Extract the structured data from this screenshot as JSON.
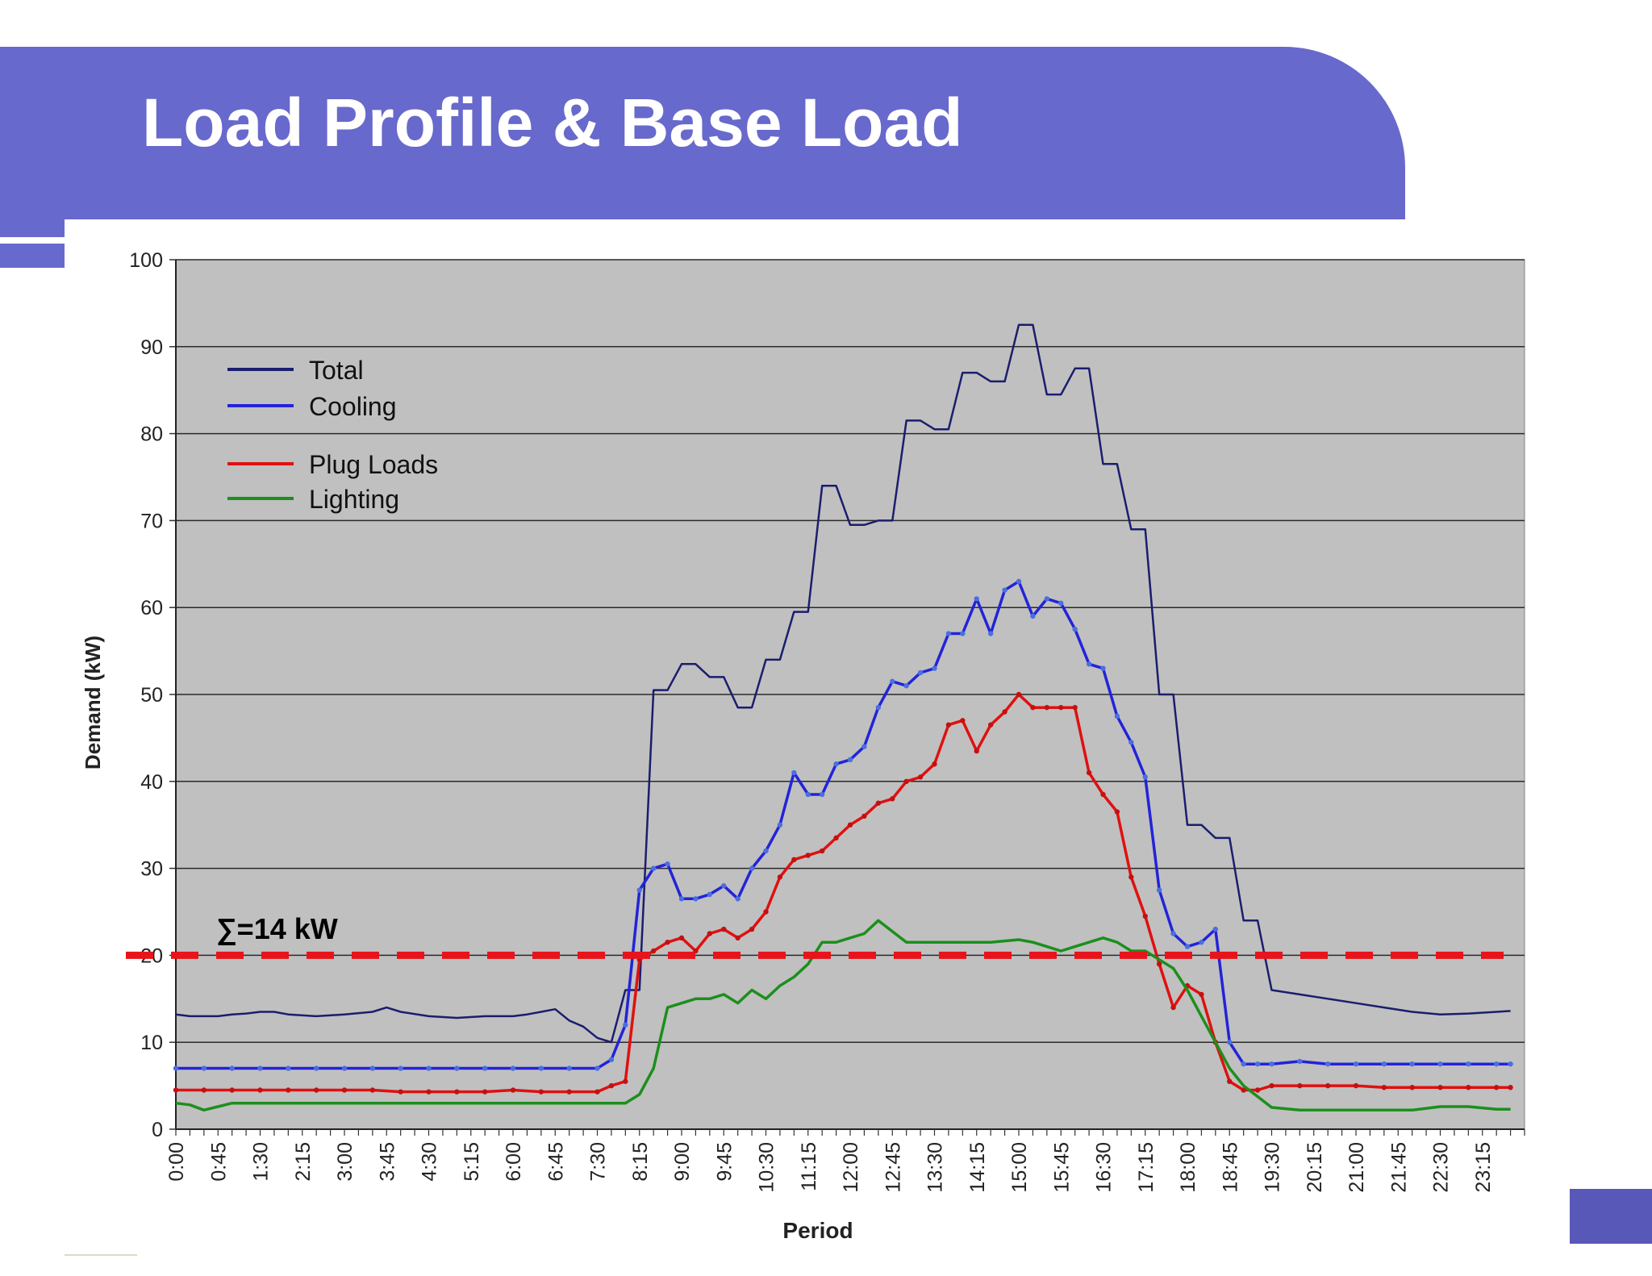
{
  "slide": {
    "title": "Load Profile & Base Load",
    "banner_color": "#6869cc",
    "corner_color": "#5858b8"
  },
  "chart_data": {
    "type": "line",
    "xlabel": "Period",
    "ylabel": "Demand (kW)",
    "ylim": [
      0,
      100
    ],
    "yticks": [
      0,
      10,
      20,
      30,
      40,
      50,
      60,
      70,
      80,
      90,
      100
    ],
    "xticks": [
      "0:00",
      "0:45",
      "1:30",
      "2:15",
      "3:00",
      "3:45",
      "4:30",
      "5:15",
      "6:00",
      "6:45",
      "7:30",
      "8:15",
      "9:00",
      "9:45",
      "10:30",
      "11:15",
      "12:00",
      "12:45",
      "13:30",
      "14:15",
      "15:00",
      "15:45",
      "16:30",
      "17:15",
      "18:00",
      "18:45",
      "19:30",
      "20:15",
      "21:00",
      "21:45",
      "22:30",
      "23:15"
    ],
    "x_unit": "hours",
    "x_range": [
      0,
      24
    ],
    "plot_bg": "#c0c0c0",
    "grid": true,
    "legend_position": "top-left",
    "series": [
      {
        "name": "Total",
        "color": "#1a1e6e",
        "x": [
          0,
          0.25,
          0.5,
          0.75,
          1,
          1.25,
          1.5,
          1.75,
          2,
          2.5,
          3,
          3.5,
          3.75,
          4,
          4.5,
          5,
          5.5,
          6,
          6.25,
          6.5,
          6.75,
          7,
          7.25,
          7.5,
          7.75,
          8,
          8.25,
          8.5,
          8.75,
          9,
          9.25,
          9.5,
          9.75,
          10,
          10.25,
          10.5,
          10.75,
          11,
          11.25,
          11.5,
          11.75,
          12,
          12.25,
          12.5,
          12.75,
          13,
          13.25,
          13.5,
          13.75,
          14,
          14.25,
          14.5,
          14.75,
          15,
          15.25,
          15.5,
          15.75,
          16,
          16.25,
          16.5,
          16.75,
          17,
          17.25,
          17.5,
          17.75,
          18,
          18.25,
          18.5,
          18.75,
          19,
          19.25,
          19.5,
          20,
          20.5,
          21,
          21.5,
          22,
          22.5,
          23,
          23.5,
          23.75
        ],
        "y": [
          13.2,
          13,
          13,
          13,
          13.2,
          13.3,
          13.5,
          13.5,
          13.2,
          13,
          13.2,
          13.5,
          14,
          13.5,
          13,
          12.8,
          13,
          13,
          13.2,
          13.5,
          13.8,
          12.5,
          11.8,
          10.5,
          10,
          16,
          16,
          50.5,
          50.5,
          53.5,
          53.5,
          52,
          52,
          48.5,
          48.5,
          54,
          54,
          59.5,
          59.5,
          74,
          74,
          69.5,
          69.5,
          70,
          70,
          81.5,
          81.5,
          80.5,
          80.5,
          87,
          87,
          86,
          86,
          92.5,
          92.5,
          84.5,
          84.5,
          87.5,
          87.5,
          76.5,
          76.5,
          69,
          69,
          50,
          50,
          35,
          35,
          33.5,
          33.5,
          24,
          24,
          16,
          15.5,
          15,
          14.5,
          14,
          13.5,
          13.2,
          13.3,
          13.5,
          13.6
        ]
      },
      {
        "name": "Cooling",
        "color": "#2323d9",
        "x": [
          0,
          0.5,
          1,
          1.5,
          2,
          2.5,
          3,
          3.5,
          4,
          4.5,
          5,
          5.5,
          6,
          6.5,
          7,
          7.5,
          7.75,
          8,
          8.25,
          8.5,
          8.75,
          9,
          9.25,
          9.5,
          9.75,
          10,
          10.25,
          10.5,
          10.75,
          11,
          11.25,
          11.5,
          11.75,
          12,
          12.25,
          12.5,
          12.75,
          13,
          13.25,
          13.5,
          13.75,
          14,
          14.25,
          14.5,
          14.75,
          15,
          15.25,
          15.5,
          15.75,
          16,
          16.25,
          16.5,
          16.75,
          17,
          17.25,
          17.5,
          17.75,
          18,
          18.25,
          18.5,
          18.75,
          19,
          19.25,
          19.5,
          20,
          20.5,
          21,
          21.5,
          22,
          22.5,
          23,
          23.5,
          23.75
        ],
        "y": [
          7,
          7,
          7,
          7,
          7,
          7,
          7,
          7,
          7,
          7,
          7,
          7,
          7,
          7,
          7,
          7,
          8,
          12,
          27.5,
          30,
          30.5,
          26.5,
          26.5,
          27,
          28,
          26.5,
          30,
          32,
          35,
          41,
          38.5,
          38.5,
          42,
          42.5,
          44,
          48.5,
          51.5,
          51,
          52.5,
          53,
          57,
          57,
          61,
          57,
          62,
          63,
          59,
          61,
          60.5,
          57.5,
          53.5,
          53,
          47.5,
          44.5,
          40.5,
          27.5,
          22.5,
          21,
          21.5,
          23,
          10,
          7.5,
          7.5,
          7.5,
          7.8,
          7.5,
          7.5,
          7.5,
          7.5,
          7.5,
          7.5,
          7.5,
          7.5
        ]
      },
      {
        "name": "Plug Loads",
        "color": "#e01010",
        "x": [
          0,
          0.5,
          1,
          1.5,
          2,
          2.5,
          3,
          3.5,
          4,
          4.5,
          5,
          5.5,
          6,
          6.5,
          7,
          7.5,
          7.75,
          8,
          8.25,
          8.5,
          8.75,
          9,
          9.25,
          9.5,
          9.75,
          10,
          10.25,
          10.5,
          10.75,
          11,
          11.25,
          11.5,
          11.75,
          12,
          12.25,
          12.5,
          12.75,
          13,
          13.25,
          13.5,
          13.75,
          14,
          14.25,
          14.5,
          14.75,
          15,
          15.25,
          15.5,
          15.75,
          16,
          16.25,
          16.5,
          16.75,
          17,
          17.25,
          17.5,
          17.75,
          18,
          18.25,
          18.5,
          18.75,
          19,
          19.25,
          19.5,
          20,
          20.5,
          21,
          21.5,
          22,
          22.5,
          23,
          23.5,
          23.75
        ],
        "y": [
          4.5,
          4.5,
          4.5,
          4.5,
          4.5,
          4.5,
          4.5,
          4.5,
          4.3,
          4.3,
          4.3,
          4.3,
          4.5,
          4.3,
          4.3,
          4.3,
          5,
          5.5,
          19.5,
          20.5,
          21.5,
          22,
          20.5,
          22.5,
          23,
          22,
          23,
          25,
          29,
          31,
          31.5,
          32,
          33.5,
          35,
          36,
          37.5,
          38,
          40,
          40.5,
          42,
          46.5,
          47,
          43.5,
          46.5,
          48,
          50,
          48.5,
          48.5,
          48.5,
          48.5,
          41,
          38.5,
          36.5,
          29,
          24.5,
          19,
          14,
          16.5,
          15.5,
          10,
          5.5,
          4.5,
          4.5,
          5,
          5,
          5,
          5,
          4.8,
          4.8,
          4.8,
          4.8,
          4.8,
          4.8
        ]
      },
      {
        "name": "Lighting",
        "color": "#1c8f1c",
        "x": [
          0,
          0.25,
          0.5,
          0.75,
          1,
          1.5,
          2,
          3,
          4,
          5,
          6,
          7,
          7.5,
          7.75,
          8,
          8.25,
          8.5,
          8.75,
          9,
          9.25,
          9.5,
          9.75,
          10,
          10.25,
          10.5,
          10.75,
          11,
          11.25,
          11.5,
          11.75,
          12,
          12.25,
          12.5,
          13,
          13.5,
          14,
          14.5,
          15,
          15.25,
          15.5,
          15.75,
          16,
          16.25,
          16.5,
          16.75,
          17,
          17.25,
          17.5,
          17.75,
          18,
          18.25,
          18.5,
          18.75,
          19,
          19.5,
          20,
          20.5,
          21,
          21.5,
          22,
          22.5,
          23,
          23.5,
          23.75
        ],
        "y": [
          3,
          2.8,
          2.2,
          2.6,
          3,
          3,
          3,
          3,
          3,
          3,
          3,
          3,
          3,
          3,
          3,
          4,
          7,
          14,
          14.5,
          15,
          15,
          15.5,
          14.5,
          16,
          15,
          16.5,
          17.5,
          19,
          21.5,
          21.5,
          22,
          22.5,
          24,
          21.5,
          21.5,
          21.5,
          21.5,
          21.8,
          21.5,
          21,
          20.5,
          21,
          21.5,
          22,
          21.5,
          20.5,
          20.5,
          19.5,
          18.5,
          16,
          13,
          10,
          7,
          5,
          2.5,
          2.2,
          2.2,
          2.2,
          2.2,
          2.2,
          2.6,
          2.6,
          2.3,
          2.3
        ]
      }
    ],
    "annotations": [
      {
        "text": "∑=14 kW",
        "y": 20,
        "style": "dashed",
        "color": "#e8131b"
      }
    ]
  }
}
